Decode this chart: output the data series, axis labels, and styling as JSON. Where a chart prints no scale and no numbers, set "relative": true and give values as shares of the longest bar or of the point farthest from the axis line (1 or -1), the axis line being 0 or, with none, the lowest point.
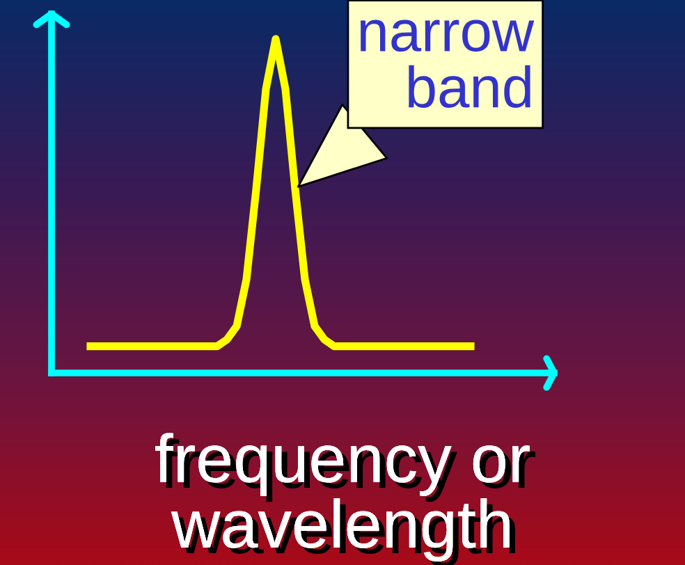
{
  "chart_data": {
    "type": "line",
    "relative": true,
    "xlabel": "frequency or wavelength",
    "annotations": [
      "narrow band"
    ],
    "categories": [
      null,
      null,
      null,
      null,
      null,
      null,
      null,
      null,
      null,
      null,
      null,
      null,
      null,
      null,
      null,
      null,
      null,
      null,
      null,
      null,
      null,
      null,
      null,
      null,
      null,
      null,
      null,
      null,
      null,
      null,
      null,
      null,
      null,
      null,
      null,
      null,
      null,
      null,
      null,
      null
    ],
    "series": [
      {
        "color": "#ffff00",
        "values": [
          0.08,
          0.08,
          0.08,
          0.08,
          0.08,
          0.08,
          0.08,
          0.08,
          0.08,
          0.08,
          0.08,
          0.08,
          0.08,
          0.08,
          0.1,
          0.14,
          0.28,
          0.55,
          0.85,
          1,
          0.85,
          0.55,
          0.28,
          0.14,
          0.1,
          0.08,
          0.08,
          0.08,
          0.08,
          0.08,
          0.08,
          0.08,
          0.08,
          0.08,
          0.08,
          0.08,
          0.08,
          0.08,
          0.08,
          0.08
        ]
      }
    ],
    "grid": false,
    "legend": false,
    "marker": "none",
    "line_style": "solid"
  }
}
